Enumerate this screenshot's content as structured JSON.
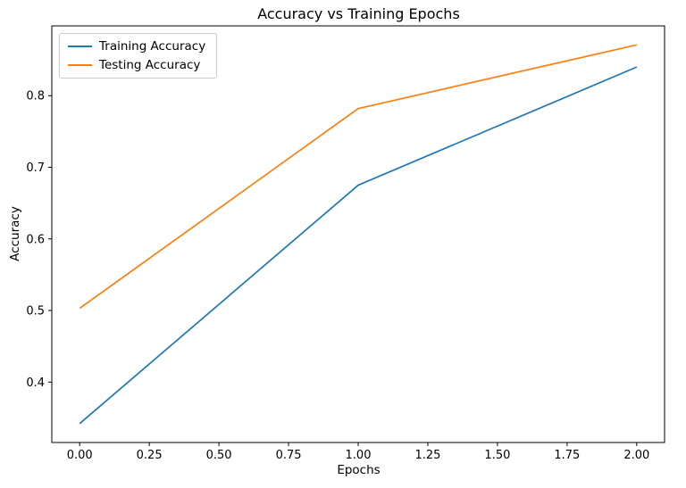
{
  "chart_data": {
    "type": "line",
    "title": "Accuracy vs Training Epochs",
    "xlabel": "Epochs",
    "ylabel": "Accuracy",
    "x": [
      0,
      1,
      2
    ],
    "series": [
      {
        "name": "Training Accuracy",
        "color": "#1f77b4",
        "values": [
          0.342,
          0.675,
          0.84
        ]
      },
      {
        "name": "Testing Accuracy",
        "color": "#ff7f0e",
        "values": [
          0.503,
          0.782,
          0.871
        ]
      }
    ],
    "xlim": [
      -0.1,
      2.1
    ],
    "ylim": [
      0.3156,
      0.8975
    ],
    "xticks": [
      0.0,
      0.25,
      0.5,
      0.75,
      1.0,
      1.25,
      1.5,
      1.75,
      2.0
    ],
    "xtick_labels": [
      "0.00",
      "0.25",
      "0.50",
      "0.75",
      "1.00",
      "1.25",
      "1.50",
      "1.75",
      "2.00"
    ],
    "yticks": [
      0.4,
      0.5,
      0.6,
      0.7,
      0.8
    ],
    "ytick_labels": [
      "0.4",
      "0.5",
      "0.6",
      "0.7",
      "0.8"
    ],
    "grid": false,
    "legend_position": "upper left",
    "background": "#ffffff",
    "axes_color": "#000000",
    "line_width": 1.7
  }
}
